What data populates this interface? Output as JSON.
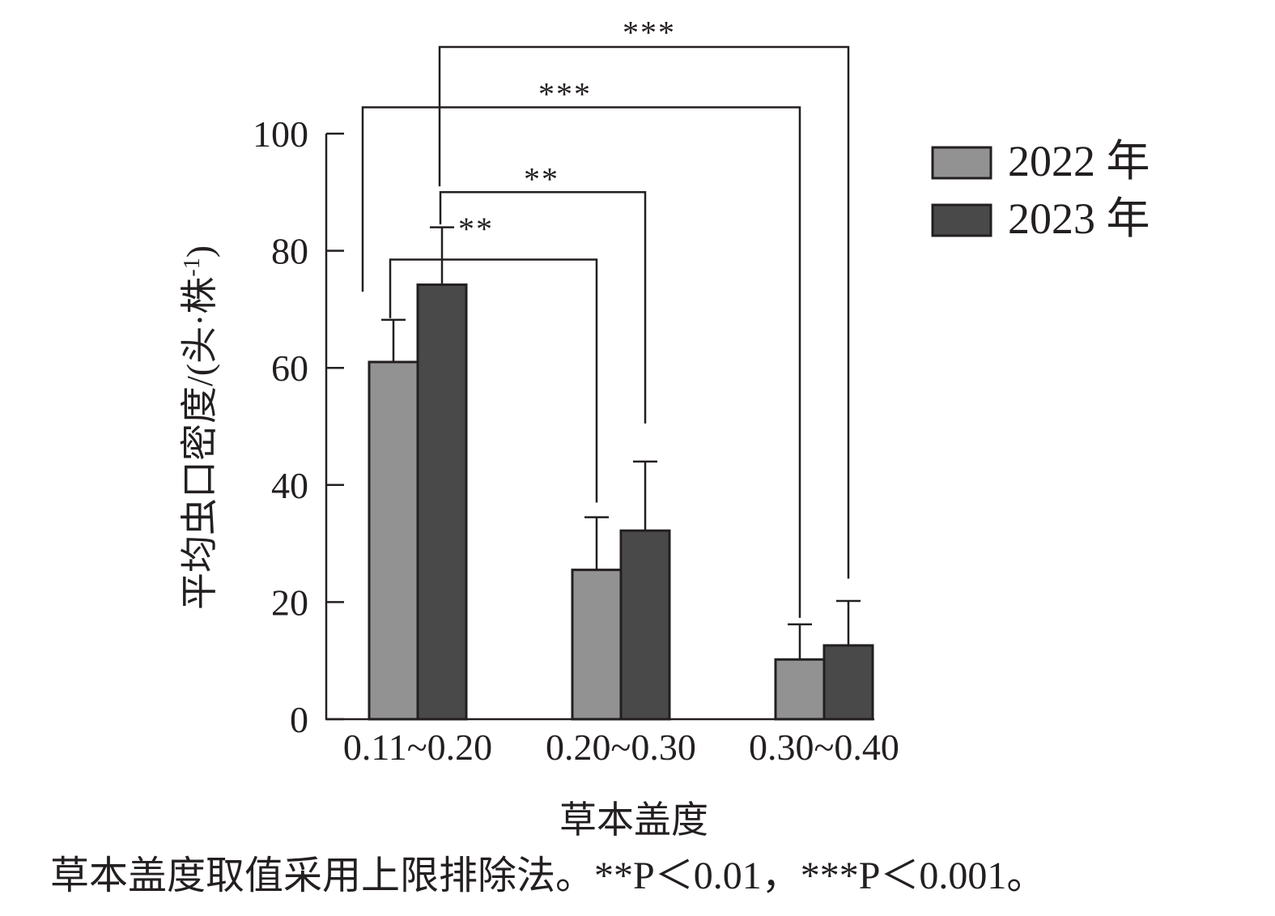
{
  "chart_data": {
    "type": "bar",
    "categories": [
      "0.11~0.20",
      "0.20~0.30",
      "0.30~0.40"
    ],
    "series": [
      {
        "name": "2022 年",
        "color": "#939292",
        "values": [
          61,
          25.5,
          10.2
        ],
        "error": [
          7.2,
          9,
          6
        ]
      },
      {
        "name": "2023 年",
        "color": "#4a494a",
        "values": [
          74.2,
          32.2,
          12.6
        ],
        "error": [
          9.8,
          11.8,
          7.6
        ]
      }
    ],
    "xlabel": "草本盖度",
    "ylabel": "平均虫口密度/(头·株",
    "ylabel_sup": "-1",
    "ylabel_close": ")",
    "ylim": [
      0,
      100
    ],
    "yticks": [
      0,
      20,
      40,
      60,
      80,
      100
    ],
    "legend_position": "top-right",
    "significance": [
      {
        "from": {
          "category": 0,
          "series": 0
        },
        "to": {
          "category": 1,
          "series": 0
        },
        "label": "**",
        "bracket_y": 78.5
      },
      {
        "from": {
          "category": 0,
          "series": 1
        },
        "to": {
          "category": 1,
          "series": 1
        },
        "label": "**",
        "bracket_y": 90
      },
      {
        "from": {
          "category": 0,
          "series": 0
        },
        "to": {
          "category": 2,
          "series": 0
        },
        "label": "***",
        "bracket_y": 104.5
      },
      {
        "from": {
          "category": 0,
          "series": 1
        },
        "to": {
          "category": 2,
          "series": 1
        },
        "label": "***",
        "bracket_y": 114.8
      }
    ]
  },
  "caption": "草本盖度取值采用上限排除法。**P＜0.01，***P＜0.001。"
}
